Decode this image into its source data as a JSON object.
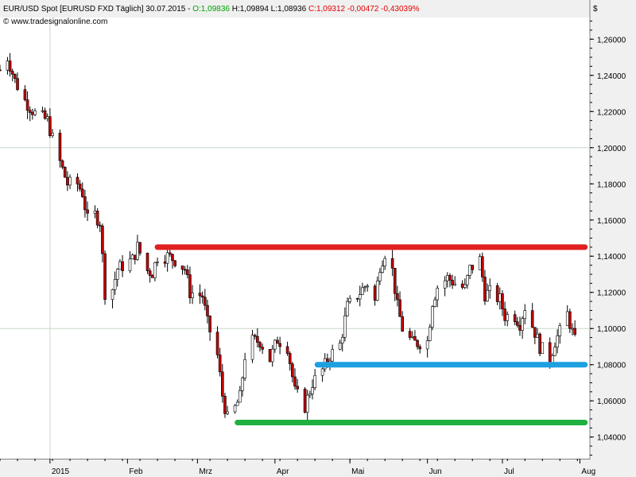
{
  "header": {
    "symbol": "EUR/USD Spot [EURUSD FXD  Täglich] 30.07.2015 - ",
    "open": "O:1,09836",
    "high": " H:1,09894",
    "low": " L:1,08936",
    "close": " C:1,09312",
    "change": " -0,00472",
    "change_pct": " -0,43039%",
    "source": "© www.tradesignalonline.com",
    "colors": {
      "open": "#00a000",
      "close": "#e00000",
      "text": "#000000"
    }
  },
  "chart_data": {
    "type": "candlestick",
    "currency_label": "$",
    "y_ticks": [
      "1,26000",
      "1,24000",
      "1,22000",
      "1,20000",
      "1,18000",
      "1,16000",
      "1,14000",
      "1,12000",
      "1,10000",
      "1,08000",
      "1,06000",
      "1,04000"
    ],
    "y_tick_values": [
      1.26,
      1.24,
      1.22,
      1.2,
      1.18,
      1.16,
      1.14,
      1.12,
      1.1,
      1.08,
      1.06,
      1.04
    ],
    "ylim": [
      1.028,
      1.272
    ],
    "x_labels": [
      "2015",
      "Feb",
      "Mrz",
      "Apr",
      "Mai",
      "Jun",
      "Jul",
      "Aug"
    ],
    "x_label_dates": [
      "2015-01-01",
      "2015-02-01",
      "2015-03-01",
      "2015-04-01",
      "2015-05-01",
      "2015-06-01",
      "2015-07-01",
      "2015-08-01"
    ],
    "xlim": [
      "2014-12-12",
      "2015-08-05"
    ],
    "grid": {
      "vertical_at": "2015-01-01",
      "horizontal_at": [
        1.2,
        1.1
      ]
    },
    "levels": [
      {
        "name": "resistance",
        "value": 1.145,
        "from": "2015-02-13",
        "to": "2015-08-03",
        "color": "#e02020"
      },
      {
        "name": "support-upper",
        "value": 1.08,
        "from": "2015-04-18",
        "to": "2015-08-03",
        "color": "#1ca0e0"
      },
      {
        "name": "support-lower",
        "value": 1.048,
        "from": "2015-03-17",
        "to": "2015-08-03",
        "color": "#20b040"
      }
    ],
    "colors": {
      "up": "#ffffff",
      "down": "#c00000",
      "wick": "#000000"
    },
    "waypoints": [
      [
        "2014-12-12",
        1.243
      ],
      [
        "2014-12-15",
        1.25
      ],
      [
        "2014-12-18",
        1.237
      ],
      [
        "2014-12-22",
        1.226
      ],
      [
        "2014-12-26",
        1.219
      ],
      [
        "2014-12-31",
        1.215
      ],
      [
        "2015-01-02",
        1.205
      ],
      [
        "2015-01-05",
        1.192
      ],
      [
        "2015-01-08",
        1.18
      ],
      [
        "2015-01-12",
        1.18
      ],
      [
        "2015-01-14",
        1.175
      ],
      [
        "2015-01-16",
        1.16
      ],
      [
        "2015-01-19",
        1.163
      ],
      [
        "2015-01-21",
        1.159
      ],
      [
        "2015-01-23",
        1.12
      ],
      [
        "2015-01-26",
        1.122
      ],
      [
        "2015-01-28",
        1.133
      ],
      [
        "2015-02-03",
        1.138
      ],
      [
        "2015-02-05",
        1.145
      ],
      [
        "2015-02-09",
        1.132
      ],
      [
        "2015-02-11",
        1.131
      ],
      [
        "2015-02-13",
        1.14
      ],
      [
        "2015-02-17",
        1.14
      ],
      [
        "2015-02-20",
        1.138
      ],
      [
        "2015-02-24",
        1.133
      ],
      [
        "2015-02-26",
        1.12
      ],
      [
        "2015-03-03",
        1.118
      ],
      [
        "2015-03-05",
        1.103
      ],
      [
        "2015-03-09",
        1.085
      ],
      [
        "2015-03-11",
        1.063
      ],
      [
        "2015-03-13",
        1.05
      ],
      [
        "2015-03-16",
        1.056
      ],
      [
        "2015-03-18",
        1.062
      ],
      [
        "2015-03-20",
        1.085
      ],
      [
        "2015-03-23",
        1.093
      ],
      [
        "2015-03-26",
        1.093
      ],
      [
        "2015-03-30",
        1.083
      ],
      [
        "2015-04-02",
        1.094
      ],
      [
        "2015-04-06",
        1.09
      ],
      [
        "2015-04-09",
        1.065
      ],
      [
        "2015-04-13",
        1.057
      ],
      [
        "2015-04-16",
        1.07
      ],
      [
        "2015-04-20",
        1.077
      ],
      [
        "2015-04-23",
        1.085
      ],
      [
        "2015-04-27",
        1.091
      ],
      [
        "2015-04-30",
        1.112
      ],
      [
        "2015-05-05",
        1.12
      ],
      [
        "2015-05-08",
        1.125
      ],
      [
        "2015-05-11",
        1.115
      ],
      [
        "2015-05-13",
        1.135
      ],
      [
        "2015-05-15",
        1.142
      ],
      [
        "2015-05-18",
        1.132
      ],
      [
        "2015-05-20",
        1.112
      ],
      [
        "2015-05-22",
        1.1
      ],
      [
        "2015-05-26",
        1.092
      ],
      [
        "2015-05-28",
        1.092
      ],
      [
        "2015-06-01",
        1.093
      ],
      [
        "2015-06-03",
        1.115
      ],
      [
        "2015-06-05",
        1.123
      ],
      [
        "2015-06-09",
        1.128
      ],
      [
        "2015-06-12",
        1.125
      ],
      [
        "2015-06-16",
        1.122
      ],
      [
        "2015-06-18",
        1.133
      ],
      [
        "2015-06-22",
        1.138
      ],
      [
        "2015-06-24",
        1.119
      ],
      [
        "2015-06-26",
        1.12
      ],
      [
        "2015-06-30",
        1.116
      ],
      [
        "2015-07-02",
        1.107
      ],
      [
        "2015-07-06",
        1.107
      ],
      [
        "2015-07-08",
        1.103
      ],
      [
        "2015-07-10",
        1.112
      ],
      [
        "2015-07-14",
        1.098
      ],
      [
        "2015-07-16",
        1.09
      ],
      [
        "2015-07-20",
        1.083
      ],
      [
        "2015-07-22",
        1.093
      ],
      [
        "2015-07-24",
        1.098
      ],
      [
        "2015-07-27",
        1.108
      ],
      [
        "2015-07-29",
        1.098
      ],
      [
        "2015-07-30",
        1.093
      ]
    ]
  }
}
